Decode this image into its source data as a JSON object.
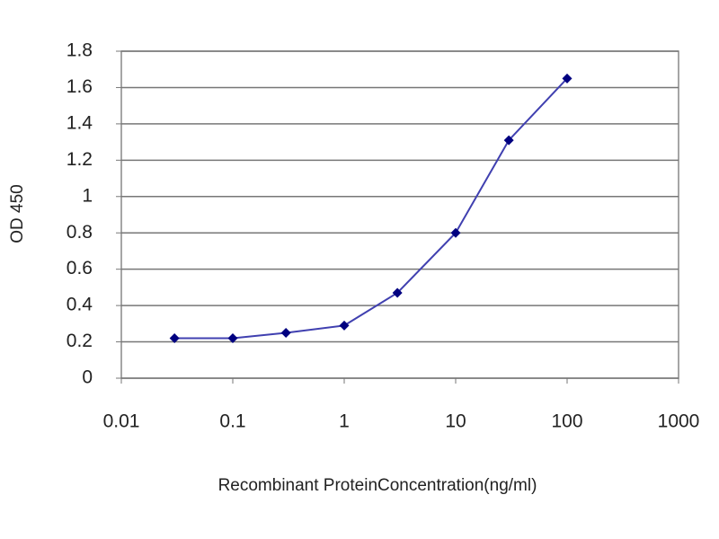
{
  "chart_data": {
    "type": "line",
    "x": [
      0.03,
      0.1,
      0.3,
      1,
      3,
      10,
      30,
      100
    ],
    "values": [
      0.22,
      0.22,
      0.25,
      0.29,
      0.47,
      0.8,
      1.31,
      1.65
    ],
    "color": "#4040b0",
    "marker_color": "#000080",
    "xlabel": "Recombinant ProteinConcentration(ng/ml)",
    "ylabel": "OD 450",
    "xlim": [
      0.01,
      1000
    ],
    "xticks": [
      0.01,
      0.1,
      1,
      10,
      100,
      1000
    ],
    "xscale": "log",
    "ylim": [
      0,
      1.8
    ],
    "yticks": [
      0,
      0.2,
      0.4,
      0.6,
      0.8,
      1,
      1.2,
      1.4,
      1.6,
      1.8
    ],
    "grid": true
  }
}
